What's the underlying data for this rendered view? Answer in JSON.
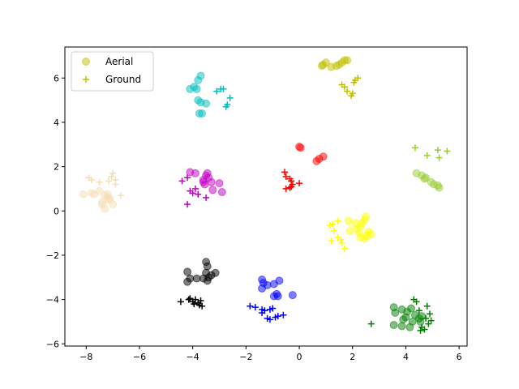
{
  "chart_data": {
    "type": "scatter",
    "xlim": [
      -8.8,
      6.3
    ],
    "ylim": [
      -6.1,
      7.4
    ],
    "xticks": [
      -8,
      -6,
      -4,
      -2,
      0,
      2,
      4,
      6
    ],
    "yticks": [
      -6,
      -4,
      -2,
      0,
      2,
      4,
      6
    ],
    "grid": false,
    "legend": {
      "placement": "top-left",
      "entries": [
        {
          "label": "Aerial",
          "marker": "circle",
          "color": "#bfbf00"
        },
        {
          "label": "Ground",
          "marker": "plus",
          "color": "#bfbf00"
        }
      ]
    },
    "series": [
      {
        "color": "#bfbf00",
        "aerial": [
          [
            0.9,
            6.6
          ],
          [
            1.0,
            6.7
          ],
          [
            1.2,
            6.5
          ],
          [
            1.5,
            6.6
          ],
          [
            1.6,
            6.7
          ],
          [
            1.7,
            6.8
          ],
          [
            1.8,
            6.8
          ],
          [
            0.85,
            6.55
          ],
          [
            1.4,
            6.55
          ]
        ],
        "ground": [
          [
            1.6,
            5.7
          ],
          [
            1.7,
            5.6
          ],
          [
            1.8,
            5.4
          ],
          [
            2.1,
            5.9
          ],
          [
            2.2,
            6.0
          ],
          [
            2.0,
            5.3
          ],
          [
            1.95,
            5.2
          ],
          [
            2.05,
            5.8
          ]
        ]
      },
      {
        "color": "#00bfbf",
        "aerial": [
          [
            -4.1,
            5.5
          ],
          [
            -3.95,
            5.6
          ],
          [
            -3.8,
            5.9
          ],
          [
            -3.7,
            6.1
          ],
          [
            -3.8,
            5.0
          ],
          [
            -3.7,
            4.9
          ],
          [
            -3.5,
            4.85
          ],
          [
            -3.75,
            4.4
          ],
          [
            -3.65,
            4.4
          ],
          [
            -3.85,
            5.5
          ]
        ],
        "ground": [
          [
            -3.1,
            5.4
          ],
          [
            -2.95,
            5.5
          ],
          [
            -2.85,
            5.5
          ],
          [
            -2.7,
            4.8
          ],
          [
            -2.6,
            5.1
          ],
          [
            -2.75,
            4.7
          ]
        ]
      },
      {
        "color": "#f5deb3",
        "aerial": [
          [
            -8.1,
            0.75
          ],
          [
            -7.8,
            0.8
          ],
          [
            -7.7,
            0.75
          ],
          [
            -7.4,
            0.4
          ],
          [
            -7.3,
            0.7
          ],
          [
            -7.2,
            0.6
          ],
          [
            -7.15,
            0.5
          ],
          [
            -7.1,
            0.55
          ],
          [
            -7.3,
            0.1
          ],
          [
            -7.4,
            0.3
          ],
          [
            -7.0,
            0.3
          ],
          [
            -7.2,
            0.75
          ],
          [
            -7.5,
            0.9
          ]
        ],
        "ground": [
          [
            -7.9,
            1.5
          ],
          [
            -7.8,
            1.4
          ],
          [
            -7.5,
            1.3
          ],
          [
            -7.15,
            1.35
          ],
          [
            -7.05,
            1.55
          ],
          [
            -7.0,
            1.7
          ],
          [
            -6.9,
            1.2
          ],
          [
            -6.7,
            0.7
          ],
          [
            -6.9,
            1.4
          ]
        ]
      },
      {
        "color": "#bf00bf",
        "aerial": [
          [
            -4.1,
            1.75
          ],
          [
            -3.9,
            1.7
          ],
          [
            -3.5,
            1.6
          ],
          [
            -3.45,
            1.7
          ],
          [
            -3.4,
            1.5
          ],
          [
            -3.3,
            1.3
          ],
          [
            -3.6,
            1.4
          ],
          [
            -3.0,
            1.25
          ],
          [
            -2.9,
            0.85
          ],
          [
            -3.25,
            0.95
          ],
          [
            -3.6,
            1.3
          ],
          [
            -3.55,
            1.2
          ]
        ],
        "ground": [
          [
            -4.4,
            1.35
          ],
          [
            -4.2,
            1.5
          ],
          [
            -4.1,
            0.9
          ],
          [
            -4.0,
            0.8
          ],
          [
            -3.8,
            0.75
          ],
          [
            -3.5,
            0.6
          ],
          [
            -3.9,
            1.0
          ],
          [
            -4.2,
            0.3
          ]
        ]
      },
      {
        "color": "#ff0000",
        "aerial": [
          [
            0.05,
            2.85
          ],
          [
            0.0,
            2.9
          ],
          [
            0.65,
            2.25
          ],
          [
            0.75,
            2.35
          ],
          [
            0.9,
            2.45
          ]
        ],
        "ground": [
          [
            -0.55,
            1.75
          ],
          [
            -0.5,
            1.55
          ],
          [
            -0.35,
            1.45
          ],
          [
            -0.3,
            1.35
          ],
          [
            -0.25,
            1.2
          ],
          [
            -0.35,
            1.05
          ],
          [
            -0.5,
            1.0
          ],
          [
            -0.3,
            1.1
          ],
          [
            0.0,
            1.25
          ]
        ]
      },
      {
        "color": "#9acd32",
        "aerial": [
          [
            4.4,
            1.7
          ],
          [
            4.6,
            1.6
          ],
          [
            4.7,
            1.45
          ],
          [
            4.75,
            1.5
          ],
          [
            4.95,
            1.3
          ],
          [
            5.05,
            1.2
          ],
          [
            5.2,
            1.15
          ],
          [
            5.25,
            1.05
          ]
        ],
        "ground": [
          [
            4.35,
            2.85
          ],
          [
            4.8,
            2.5
          ],
          [
            5.2,
            2.75
          ],
          [
            5.25,
            2.4
          ],
          [
            5.55,
            2.7
          ]
        ]
      },
      {
        "color": "#ffff00",
        "aerial": [
          [
            1.85,
            -0.45
          ],
          [
            2.1,
            -0.55
          ],
          [
            2.15,
            -0.8
          ],
          [
            2.25,
            -1.0
          ],
          [
            2.3,
            -0.7
          ],
          [
            2.35,
            -0.55
          ],
          [
            2.45,
            -0.4
          ],
          [
            2.5,
            -0.25
          ],
          [
            2.6,
            -0.95
          ],
          [
            2.55,
            -1.1
          ],
          [
            2.3,
            -1.2
          ],
          [
            2.45,
            -1.25
          ],
          [
            2.7,
            -1.05
          ],
          [
            1.9,
            -0.9
          ]
        ],
        "ground": [
          [
            1.15,
            -0.65
          ],
          [
            1.25,
            -0.6
          ],
          [
            1.45,
            -0.45
          ],
          [
            1.3,
            -0.9
          ],
          [
            1.2,
            -1.35
          ],
          [
            1.45,
            -1.2
          ],
          [
            1.55,
            -1.3
          ],
          [
            1.7,
            -1.7
          ],
          [
            1.6,
            -1.45
          ]
        ]
      },
      {
        "color": "#000000",
        "aerial": [
          [
            -4.2,
            -2.75
          ],
          [
            -4.1,
            -3.05
          ],
          [
            -3.85,
            -3.05
          ],
          [
            -3.5,
            -2.3
          ],
          [
            -3.45,
            -2.5
          ],
          [
            -3.5,
            -2.8
          ],
          [
            -3.4,
            -3.0
          ],
          [
            -3.45,
            -3.15
          ],
          [
            -3.3,
            -2.9
          ],
          [
            -3.15,
            -2.8
          ],
          [
            -4.2,
            -3.2
          ],
          [
            -3.6,
            -3.05
          ]
        ],
        "ground": [
          [
            -4.45,
            -4.1
          ],
          [
            -4.15,
            -4.0
          ],
          [
            -4.1,
            -3.95
          ],
          [
            -4.0,
            -4.1
          ],
          [
            -3.9,
            -4.0
          ],
          [
            -3.8,
            -4.15
          ],
          [
            -3.75,
            -4.25
          ],
          [
            -3.65,
            -4.3
          ],
          [
            -3.95,
            -4.2
          ],
          [
            -3.7,
            -4.05
          ]
        ]
      },
      {
        "color": "#0000ff",
        "aerial": [
          [
            -1.4,
            -3.1
          ],
          [
            -1.35,
            -3.25
          ],
          [
            -1.4,
            -3.5
          ],
          [
            -1.2,
            -3.35
          ],
          [
            -0.95,
            -3.3
          ],
          [
            -0.75,
            -3.15
          ],
          [
            -0.85,
            -3.75
          ],
          [
            -0.95,
            -3.85
          ],
          [
            -0.8,
            -3.85
          ],
          [
            -0.25,
            -3.8
          ]
        ],
        "ground": [
          [
            -1.85,
            -4.3
          ],
          [
            -1.65,
            -4.35
          ],
          [
            -1.4,
            -4.45
          ],
          [
            -1.3,
            -4.5
          ],
          [
            -1.1,
            -4.45
          ],
          [
            -1.0,
            -4.4
          ],
          [
            -1.2,
            -4.85
          ],
          [
            -1.1,
            -4.9
          ],
          [
            -0.9,
            -4.8
          ],
          [
            -0.8,
            -4.75
          ],
          [
            -0.6,
            -4.7
          ],
          [
            -1.4,
            -4.6
          ]
        ]
      },
      {
        "color": "#008000",
        "aerial": [
          [
            3.55,
            -4.35
          ],
          [
            3.6,
            -4.6
          ],
          [
            3.85,
            -4.45
          ],
          [
            4.05,
            -4.55
          ],
          [
            4.2,
            -4.4
          ],
          [
            4.35,
            -4.7
          ],
          [
            4.5,
            -4.85
          ],
          [
            4.6,
            -4.75
          ],
          [
            4.0,
            -4.8
          ],
          [
            3.9,
            -4.9
          ],
          [
            4.25,
            -5.0
          ],
          [
            3.55,
            -5.15
          ],
          [
            3.85,
            -5.2
          ],
          [
            4.15,
            -5.25
          ],
          [
            4.55,
            -5.0
          ]
        ],
        "ground": [
          [
            2.7,
            -5.1
          ],
          [
            4.3,
            -4.0
          ],
          [
            4.4,
            -4.1
          ],
          [
            4.5,
            -4.5
          ],
          [
            4.8,
            -4.3
          ],
          [
            4.9,
            -4.65
          ],
          [
            4.95,
            -4.95
          ],
          [
            4.75,
            -4.85
          ],
          [
            4.6,
            -5.25
          ],
          [
            4.55,
            -5.4
          ],
          [
            4.7,
            -5.35
          ],
          [
            4.85,
            -5.1
          ]
        ]
      }
    ]
  }
}
